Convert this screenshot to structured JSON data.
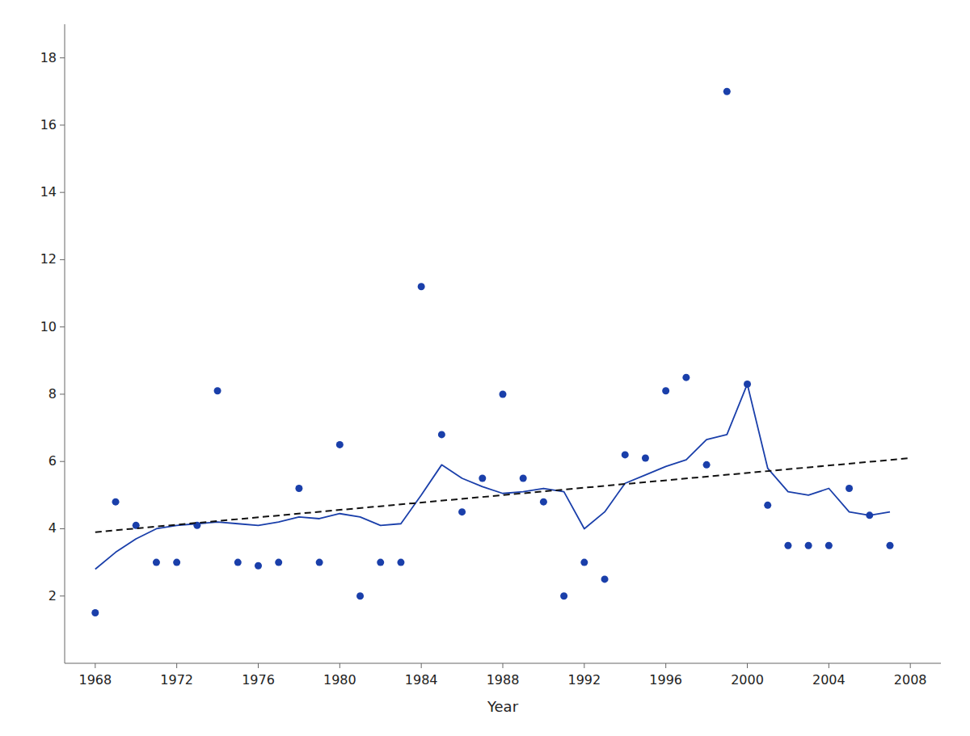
{
  "chart_data": {
    "type": "scatter",
    "xlabel": "Year",
    "xlim": [
      1966.5,
      2009.5
    ],
    "ylim": [
      0,
      19
    ],
    "xticks": [
      1968,
      1972,
      1976,
      1980,
      1984,
      1988,
      1992,
      1996,
      2000,
      2004,
      2008
    ],
    "yticks": [
      2,
      4,
      6,
      8,
      10,
      12,
      14,
      16,
      18
    ],
    "series": [
      {
        "type": "scatter",
        "color": "#1a3faa",
        "x": [
          1968,
          1969,
          1970,
          1971,
          1972,
          1973,
          1974,
          1975,
          1976,
          1977,
          1978,
          1979,
          1980,
          1981,
          1982,
          1983,
          1984,
          1985,
          1986,
          1987,
          1988,
          1989,
          1990,
          1991,
          1992,
          1993,
          1994,
          1995,
          1996,
          1997,
          1998,
          1999,
          2000,
          2001,
          2002,
          2003,
          2004,
          2005,
          2006,
          2007
        ],
        "values": [
          1.5,
          4.8,
          4.1,
          3.0,
          3.0,
          4.1,
          8.1,
          3.0,
          2.9,
          3.0,
          5.2,
          3.0,
          6.5,
          2.0,
          3.0,
          3.0,
          11.2,
          6.8,
          4.5,
          5.5,
          8.0,
          5.5,
          4.8,
          2.0,
          3.0,
          2.5,
          6.2,
          6.1,
          8.1,
          8.5,
          5.9,
          17.0,
          8.3,
          4.7,
          3.5,
          3.5,
          3.5,
          5.2,
          4.4,
          3.5
        ]
      },
      {
        "type": "line",
        "color": "#1a3faa",
        "x": [
          1968,
          1969,
          1970,
          1971,
          1972,
          1973,
          1974,
          1975,
          1976,
          1977,
          1978,
          1979,
          1980,
          1981,
          1982,
          1983,
          1984,
          1985,
          1986,
          1987,
          1988,
          1989,
          1990,
          1991,
          1992,
          1993,
          1994,
          1995,
          1996,
          1997,
          1998,
          1999,
          2000,
          2001,
          2002,
          2003,
          2004,
          2005,
          2006,
          2007
        ],
        "values": [
          2.8,
          3.3,
          3.7,
          4.0,
          4.1,
          4.15,
          4.2,
          4.15,
          4.1,
          4.2,
          4.35,
          4.3,
          4.45,
          4.35,
          4.1,
          4.15,
          5.0,
          5.9,
          5.5,
          5.25,
          5.05,
          5.1,
          5.2,
          5.1,
          4.0,
          4.5,
          5.35,
          5.6,
          5.85,
          6.05,
          6.65,
          6.8,
          8.3,
          5.8,
          5.1,
          5.0,
          5.2,
          4.5,
          4.4,
          4.5
        ]
      },
      {
        "type": "line",
        "line_style": "dashed",
        "color": "#111111",
        "x": [
          1968,
          2008
        ],
        "values": [
          3.9,
          6.1
        ]
      }
    ]
  }
}
